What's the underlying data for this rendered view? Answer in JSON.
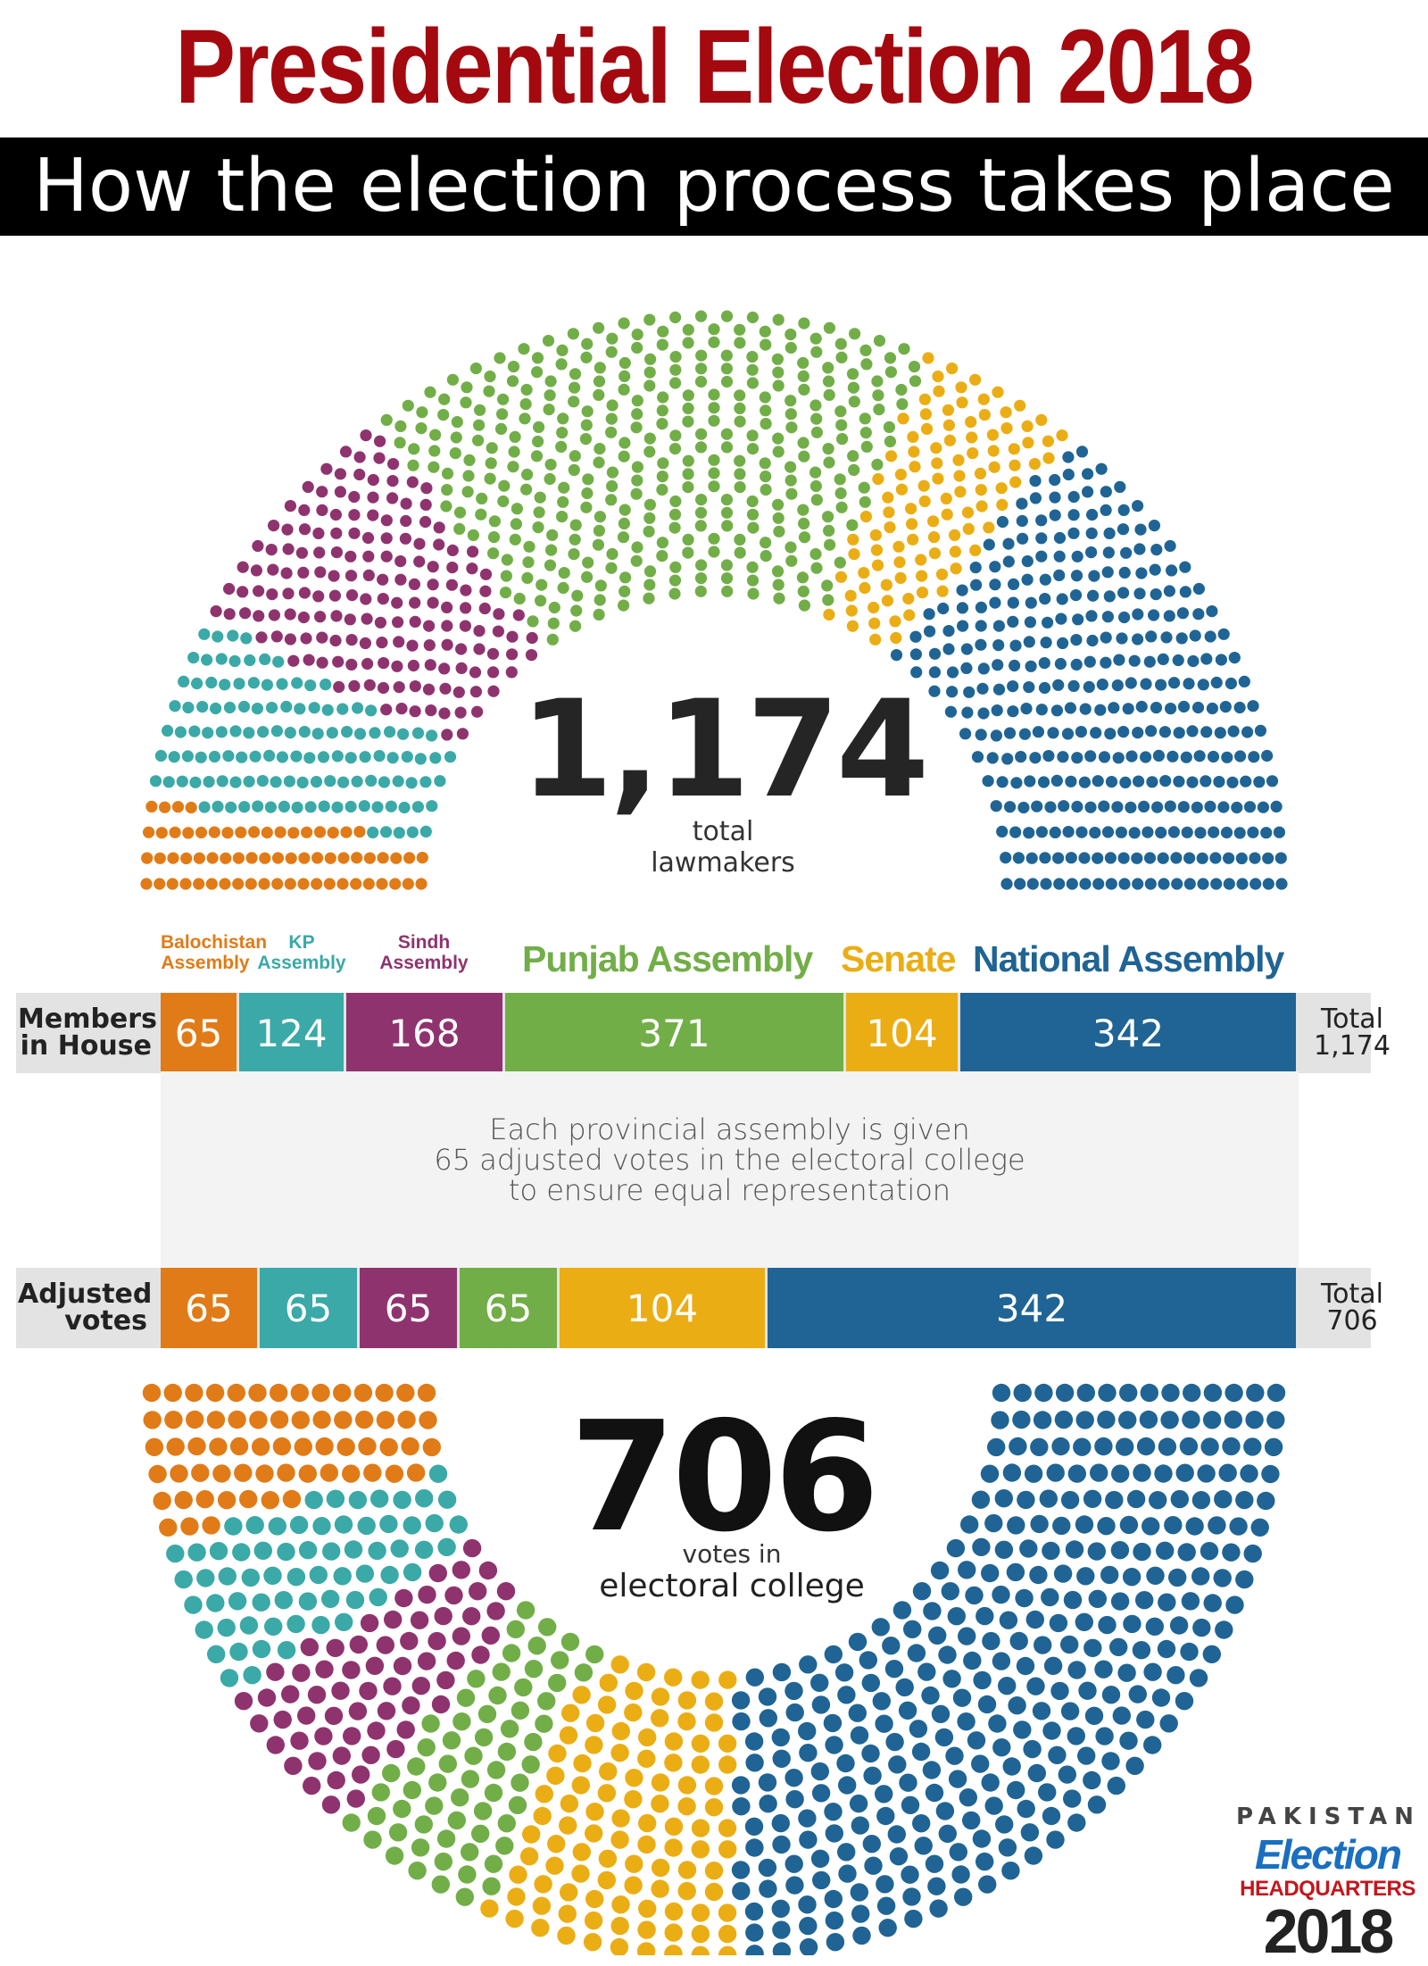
{
  "header": {
    "title": "Presidential Election 2018",
    "subtitle": "How the election process takes place"
  },
  "colors": {
    "balochistan": "#e07b17",
    "kp": "#3aa9a7",
    "sindh": "#8f336f",
    "punjab": "#72ae48",
    "senate": "#ebad14",
    "national": "#1f6494"
  },
  "top_center": {
    "number": "1,174",
    "line1": "total",
    "line2": "lawmakers"
  },
  "bottom_center": {
    "number": "706",
    "line1": "votes in",
    "line2": "electoral college"
  },
  "legend": {
    "balochistan_1": "Balochistan",
    "balochistan_2": "Assembly",
    "kp_1": "KP",
    "kp_2": "Assembly",
    "sindh_1": "Sindh",
    "sindh_2": "Assembly",
    "punjab": "Punjab Assembly",
    "senate": "Senate",
    "national": "National Assembly"
  },
  "rows": {
    "members_head_1": "Members",
    "members_head_2": "in House",
    "members_total_1": "Total",
    "members_total_2": "1,174",
    "adjusted_head_1": "Adjusted",
    "adjusted_head_2": "votes",
    "adjusted_total_1": "Total",
    "adjusted_total_2": "706"
  },
  "note": {
    "line1": "Each provincial assembly is given",
    "line2": "65 adjusted votes in the electoral college",
    "line3": "to ensure equal representation"
  },
  "logo": {
    "line1": "PAKISTAN",
    "line2": "Election",
    "line3": "HEADQUARTERS",
    "line4": "2018"
  },
  "chart_data": [
    {
      "type": "bar",
      "title": "Members in House",
      "categories": [
        "Balochistan Assembly",
        "KP Assembly",
        "Sindh Assembly",
        "Punjab Assembly",
        "Senate",
        "National Assembly"
      ],
      "values": [
        65,
        124,
        168,
        371,
        104,
        342
      ],
      "total": 1174
    },
    {
      "type": "bar",
      "title": "Adjusted votes",
      "categories": [
        "Balochistan Assembly",
        "KP Assembly",
        "Sindh Assembly",
        "Punjab Assembly",
        "Senate",
        "National Assembly"
      ],
      "values": [
        65,
        65,
        65,
        65,
        104,
        342
      ],
      "total": 706
    }
  ]
}
